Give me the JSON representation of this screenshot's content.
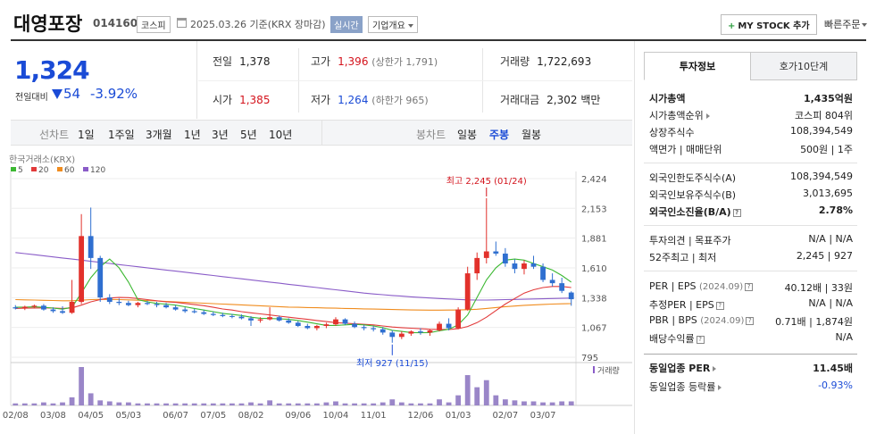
{
  "header": {
    "stock_name": "대영포장",
    "stock_code": "014160",
    "market": "코스피",
    "date_text": "2025.03.26 기준(KRX 장마감)",
    "realtime": "실시간",
    "overview": "기업개요",
    "mystock": "MY STOCK 추가",
    "quick_order": "빠른주문"
  },
  "price": {
    "current": "1,324",
    "prev_label": "전일대비",
    "diff": "54",
    "pct": "-3.92%"
  },
  "info": {
    "prev_close_label": "전일",
    "prev_close": "1,378",
    "high_label": "고가",
    "high": "1,396",
    "high_limit": "(상한가 1,791)",
    "volume_label": "거래량",
    "volume": "1,722,693",
    "open_label": "시가",
    "open": "1,385",
    "low_label": "저가",
    "low": "1,264",
    "low_limit": "(하한가 965)",
    "amount_label": "거래대금",
    "amount": "2,302",
    "amount_unit": "백만"
  },
  "period_bar": {
    "line_label": "선차트",
    "line_items": [
      "1일",
      "1주일",
      "3개월",
      "1년",
      "3년",
      "5년",
      "10년"
    ],
    "candle_label": "봉차트",
    "candle_items": [
      "일봉",
      "주봉",
      "월봉"
    ],
    "candle_active_index": 1
  },
  "chart_data": {
    "type": "candlestick",
    "source": "한국거래소(KRX)",
    "legend": [
      {
        "name": "5",
        "color": "#3cb832"
      },
      {
        "name": "20",
        "color": "#e23a3a"
      },
      {
        "name": "60",
        "color": "#f08c1e"
      },
      {
        "name": "120",
        "color": "#8a5cc8"
      }
    ],
    "y_ticks": [
      "2,424",
      "2,153",
      "1,881",
      "1,610",
      "1,338",
      "1,067",
      "795"
    ],
    "y_tick_values": [
      2424,
      2153,
      1881,
      1610,
      1338,
      1067,
      795
    ],
    "ylim": [
      795,
      2424
    ],
    "x_labels": [
      "02/08",
      "03/08",
      "04/05",
      "05/03",
      "06/07",
      "07/05",
      "08/02",
      "09/06",
      "10/04",
      "11/01",
      "12/06",
      "01/03",
      "02/07",
      "03/07"
    ],
    "x_label_index": [
      0,
      4,
      8,
      12,
      17,
      21,
      25,
      30,
      34,
      38,
      43,
      47,
      52,
      56
    ],
    "max_annotation": "최고 2,245 (01/24)",
    "max_index": 50,
    "max_value": 2245,
    "min_annotation": "최저 927 (11/15)",
    "min_index": 40,
    "min_value": 927,
    "volume_label": "거래량",
    "candles": [
      [
        1250,
        1270,
        1230,
        1240
      ],
      [
        1240,
        1265,
        1225,
        1255
      ],
      [
        1255,
        1275,
        1240,
        1265
      ],
      [
        1265,
        1280,
        1220,
        1230
      ],
      [
        1230,
        1250,
        1200,
        1215
      ],
      [
        1215,
        1260,
        1190,
        1200
      ],
      [
        1200,
        1500,
        1190,
        1300
      ],
      [
        1300,
        2100,
        1280,
        1900
      ],
      [
        1900,
        2160,
        1600,
        1700
      ],
      [
        1700,
        1720,
        1300,
        1340
      ],
      [
        1340,
        1370,
        1280,
        1300
      ],
      [
        1300,
        1330,
        1270,
        1290
      ],
      [
        1290,
        1310,
        1260,
        1270
      ],
      [
        1270,
        1300,
        1250,
        1290
      ],
      [
        1290,
        1310,
        1270,
        1280
      ],
      [
        1280,
        1300,
        1250,
        1270
      ],
      [
        1270,
        1290,
        1240,
        1250
      ],
      [
        1250,
        1270,
        1220,
        1230
      ],
      [
        1230,
        1250,
        1200,
        1215
      ],
      [
        1215,
        1235,
        1195,
        1205
      ],
      [
        1205,
        1225,
        1180,
        1190
      ],
      [
        1190,
        1210,
        1170,
        1180
      ],
      [
        1180,
        1200,
        1160,
        1170
      ],
      [
        1170,
        1190,
        1150,
        1165
      ],
      [
        1165,
        1185,
        1140,
        1150
      ],
      [
        1150,
        1170,
        1080,
        1130
      ],
      [
        1130,
        1160,
        1110,
        1140
      ],
      [
        1140,
        1250,
        1130,
        1160
      ],
      [
        1160,
        1175,
        1120,
        1130
      ],
      [
        1130,
        1150,
        1100,
        1110
      ],
      [
        1110,
        1125,
        1070,
        1080
      ],
      [
        1080,
        1100,
        1050,
        1060
      ],
      [
        1060,
        1090,
        1040,
        1080
      ],
      [
        1080,
        1110,
        1060,
        1095
      ],
      [
        1095,
        1160,
        1080,
        1140
      ],
      [
        1140,
        1150,
        1090,
        1100
      ],
      [
        1100,
        1120,
        1060,
        1070
      ],
      [
        1070,
        1090,
        1040,
        1060
      ],
      [
        1060,
        1080,
        1030,
        1050
      ],
      [
        1050,
        1070,
        1000,
        1020
      ],
      [
        1020,
        1040,
        927,
        980
      ],
      [
        980,
        1030,
        960,
        1010
      ],
      [
        1010,
        1040,
        990,
        1030
      ],
      [
        1030,
        1060,
        1000,
        1020
      ],
      [
        1020,
        1050,
        990,
        1040
      ],
      [
        1040,
        1120,
        1030,
        1100
      ],
      [
        1100,
        1150,
        1040,
        1060
      ],
      [
        1060,
        1250,
        1050,
        1230
      ],
      [
        1230,
        1620,
        1220,
        1560
      ],
      [
        1560,
        1750,
        1500,
        1700
      ],
      [
        1700,
        2245,
        1650,
        1760
      ],
      [
        1760,
        1850,
        1720,
        1740
      ],
      [
        1740,
        1790,
        1620,
        1650
      ],
      [
        1650,
        1690,
        1560,
        1600
      ],
      [
        1600,
        1680,
        1550,
        1650
      ],
      [
        1650,
        1720,
        1600,
        1620
      ],
      [
        1620,
        1650,
        1480,
        1500
      ],
      [
        1500,
        1560,
        1440,
        1470
      ],
      [
        1470,
        1520,
        1380,
        1400
      ],
      [
        1385,
        1396,
        1264,
        1324
      ]
    ],
    "volumes": [
      2,
      2,
      2,
      3,
      2,
      3,
      8,
      38,
      12,
      5,
      4,
      3,
      3,
      2,
      2,
      2,
      2,
      2,
      2,
      2,
      2,
      2,
      2,
      2,
      2,
      3,
      2,
      5,
      2,
      2,
      2,
      2,
      2,
      3,
      4,
      2,
      2,
      2,
      2,
      3,
      6,
      3,
      2,
      2,
      2,
      6,
      3,
      10,
      30,
      18,
      25,
      10,
      6,
      5,
      4,
      4,
      3,
      3,
      4,
      4
    ],
    "ma5": [
      1250,
      1252,
      1254,
      1250,
      1243,
      1233,
      1250,
      1380,
      1520,
      1620,
      1690,
      1610,
      1480,
      1320,
      1300,
      1285,
      1280,
      1270,
      1255,
      1240,
      1225,
      1210,
      1195,
      1185,
      1175,
      1160,
      1150,
      1148,
      1145,
      1140,
      1130,
      1115,
      1100,
      1085,
      1085,
      1090,
      1095,
      1090,
      1080,
      1065,
      1040,
      1030,
      1020,
      1018,
      1020,
      1035,
      1050,
      1090,
      1180,
      1340,
      1500,
      1610,
      1680,
      1690,
      1680,
      1650,
      1620,
      1590,
      1540,
      1480
    ],
    "ma20": [
      1240,
      1242,
      1244,
      1245,
      1244,
      1240,
      1245,
      1270,
      1300,
      1320,
      1335,
      1340,
      1338,
      1330,
      1320,
      1310,
      1300,
      1295,
      1285,
      1275,
      1265,
      1250,
      1235,
      1225,
      1210,
      1200,
      1190,
      1180,
      1170,
      1160,
      1150,
      1140,
      1130,
      1120,
      1110,
      1105,
      1100,
      1095,
      1090,
      1080,
      1070,
      1065,
      1060,
      1055,
      1050,
      1048,
      1048,
      1055,
      1075,
      1110,
      1160,
      1220,
      1280,
      1330,
      1380,
      1410,
      1430,
      1440,
      1440,
      1430
    ],
    "ma60": [
      1320,
      1318,
      1316,
      1314,
      1312,
      1310,
      1310,
      1315,
      1320,
      1322,
      1322,
      1320,
      1318,
      1315,
      1312,
      1308,
      1304,
      1300,
      1296,
      1292,
      1288,
      1284,
      1280,
      1276,
      1272,
      1268,
      1264,
      1260,
      1256,
      1252,
      1250,
      1248,
      1246,
      1244,
      1242,
      1240,
      1238,
      1236,
      1234,
      1232,
      1230,
      1228,
      1226,
      1225,
      1224,
      1224,
      1225,
      1226,
      1228,
      1232,
      1240,
      1248,
      1256,
      1262,
      1268,
      1272,
      1276,
      1280,
      1282,
      1284
    ],
    "ma120": [
      1750,
      1740,
      1730,
      1720,
      1710,
      1700,
      1690,
      1680,
      1670,
      1660,
      1650,
      1640,
      1630,
      1620,
      1610,
      1600,
      1590,
      1580,
      1570,
      1560,
      1550,
      1540,
      1530,
      1520,
      1510,
      1500,
      1490,
      1480,
      1470,
      1460,
      1450,
      1440,
      1430,
      1420,
      1410,
      1400,
      1390,
      1380,
      1372,
      1365,
      1358,
      1352,
      1346,
      1340,
      1335,
      1330,
      1326,
      1322,
      1318,
      1316,
      1316,
      1318,
      1320,
      1322,
      1324,
      1326,
      1328,
      1330,
      1332,
      1334
    ]
  },
  "right_panel": {
    "tab_on": "투자정보",
    "tab_off": "호가10단계",
    "market_cap_label": "시가총액",
    "market_cap": "1,435억원",
    "cap_rank_label": "시가총액순위",
    "cap_rank": "코스피 804위",
    "shares_label": "상장주식수",
    "shares": "108,394,549",
    "par_label": "액면가 | 매매단위",
    "par": "500원 | 1주",
    "foreign_limit_label": "외국인한도주식수(A)",
    "foreign_limit": "108,394,549",
    "foreign_hold_label": "외국인보유주식수(B)",
    "foreign_hold": "3,013,695",
    "foreign_ratio_label": "외국인소진율(B/A)",
    "foreign_ratio": "2.78%",
    "opinion_label": "투자의견 | 목표주가",
    "opinion": "N/A | N/A",
    "w52_label": "52주최고 | 최저",
    "w52": "2,245 | 927",
    "per_label": "PER | EPS",
    "per_date": "(2024.09)",
    "per": "40.12배 | 33원",
    "est_per_label": "추정PER | EPS",
    "est_per": "N/A | N/A",
    "pbr_label": "PBR | BPS",
    "pbr_date": "(2024.09)",
    "pbr": "0.71배 | 1,874원",
    "div_label": "배당수익률",
    "div": "N/A",
    "ind_per_label": "동일업종 PER",
    "ind_per": "11.45배",
    "ind_rate_label": "동일업종 등락률",
    "ind_rate": "-0.93%"
  }
}
